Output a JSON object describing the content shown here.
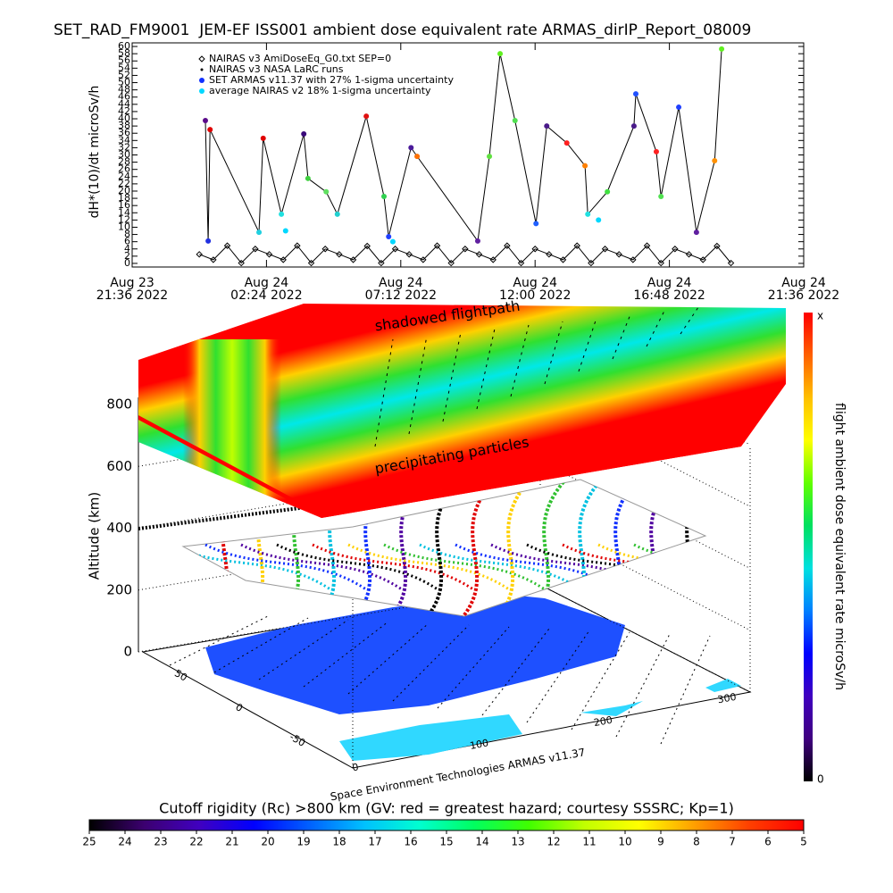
{
  "chart_data": [
    {
      "type": "timeseries",
      "title": "SET_RAD_FM9001  JEM-EF ISS001 ambient dose equivalent rate ARMAS_dirIP_Report_08009",
      "y_label": "dH*(10)/dt microSv/h",
      "xlim": [
        "2022-08-23T21:36",
        "2022-08-24T21:36"
      ],
      "xticks": [
        {
          "value": "2022-08-23T21:36",
          "label": [
            "Aug 23",
            "21:36 2022"
          ]
        },
        {
          "value": "2022-08-24T02:24",
          "label": [
            "Aug 24",
            "02:24 2022"
          ]
        },
        {
          "value": "2022-08-24T07:12",
          "label": [
            "Aug 24",
            "07:12 2022"
          ]
        },
        {
          "value": "2022-08-24T12:00",
          "label": [
            "Aug 24",
            "12:00 2022"
          ]
        },
        {
          "value": "2022-08-24T16:48",
          "label": [
            "Aug 24",
            "16:48 2022"
          ]
        },
        {
          "value": "2022-08-24T21:36",
          "label": [
            "Aug 24",
            "21:36 2022"
          ]
        }
      ],
      "ylim": [
        -1,
        61
      ],
      "yticks": [
        0,
        2,
        4,
        6,
        8,
        10,
        12,
        14,
        16,
        18,
        20,
        22,
        24,
        26,
        28,
        30,
        32,
        34,
        36,
        38,
        40,
        42,
        44,
        46,
        48,
        50,
        52,
        54,
        56,
        58,
        60
      ],
      "series": [
        {
          "name": "NAIRAS v3 AmiDoseEq_G0.txt SEP=0",
          "color": "#000000",
          "marker": "diamond",
          "line": true,
          "x": [
            "2022-08-24T00:00",
            "2022-08-24T00:30",
            "2022-08-24T01:00",
            "2022-08-24T01:30",
            "2022-08-24T02:00",
            "2022-08-24T02:30",
            "2022-08-24T03:00",
            "2022-08-24T03:30",
            "2022-08-24T04:00",
            "2022-08-24T04:30",
            "2022-08-24T05:00",
            "2022-08-24T05:30",
            "2022-08-24T06:00",
            "2022-08-24T06:30",
            "2022-08-24T07:00",
            "2022-08-24T07:30",
            "2022-08-24T08:00",
            "2022-08-24T08:30",
            "2022-08-24T09:00",
            "2022-08-24T09:30",
            "2022-08-24T10:00",
            "2022-08-24T10:30",
            "2022-08-24T11:00",
            "2022-08-24T11:30",
            "2022-08-24T12:00",
            "2022-08-24T12:30",
            "2022-08-24T13:00",
            "2022-08-24T13:30",
            "2022-08-24T14:00",
            "2022-08-24T14:30",
            "2022-08-24T15:00",
            "2022-08-24T15:30",
            "2022-08-24T16:00",
            "2022-08-24T16:30",
            "2022-08-24T17:00",
            "2022-08-24T17:30",
            "2022-08-24T18:00",
            "2022-08-24T18:30",
            "2022-08-24T19:00"
          ],
          "values": [
            2.5,
            1,
            4.9,
            0.1,
            4,
            2.5,
            1,
            4.9,
            0.1,
            4,
            2.5,
            1,
            4.8,
            0.1,
            4,
            2.5,
            1,
            4.9,
            0.1,
            4,
            2.5,
            1,
            4.9,
            0.1,
            4,
            2.5,
            1,
            4.9,
            0.1,
            4,
            2.5,
            1,
            4.9,
            0.1,
            4,
            2.5,
            1,
            4.8,
            0.1
          ]
        },
        {
          "name": "NAIRAS v3 NASA LaRC runs",
          "color": "#000000",
          "marker": "dot",
          "line": false,
          "x": [],
          "values": []
        },
        {
          "name": "SET ARMAS v11.37 with 27% 1-sigma uncertainty",
          "color": "#1030ff",
          "marker": "circle",
          "line": true,
          "line_color": "#000000",
          "x": [
            "2022-08-24T00:13",
            "2022-08-24T00:19",
            "2022-08-24T00:23",
            "2022-08-24T02:08",
            "2022-08-24T02:17",
            "2022-08-24T02:56",
            "2022-08-24T03:44",
            "2022-08-24T03:53",
            "2022-08-24T04:32",
            "2022-08-24T04:56",
            "2022-08-24T05:58",
            "2022-08-24T06:36",
            "2022-08-24T06:46",
            "2022-08-24T07:34",
            "2022-08-24T07:47",
            "2022-08-24T09:57",
            "2022-08-24T10:22",
            "2022-08-24T10:45",
            "2022-08-24T11:17",
            "2022-08-24T12:02",
            "2022-08-24T12:25",
            "2022-08-24T13:08",
            "2022-08-24T13:47",
            "2022-08-24T13:53",
            "2022-08-24T14:35",
            "2022-08-24T15:32",
            "2022-08-24T15:36",
            "2022-08-24T16:20",
            "2022-08-24T16:30",
            "2022-08-24T17:08",
            "2022-08-24T17:46",
            "2022-08-24T18:25",
            "2022-08-24T18:40"
          ],
          "values": [
            39.5,
            6.2,
            37,
            8.6,
            34.6,
            13.6,
            35.8,
            23.5,
            19.8,
            13.6,
            40.7,
            18.5,
            7.4,
            32,
            29.6,
            6.2,
            29.6,
            58,
            39.5,
            11,
            38,
            33.3,
            27,
            13.6,
            19.8,
            38,
            46.9,
            30.9,
            18.5,
            43.2,
            8.6,
            28.4,
            59.3
          ],
          "point_colors": [
            "#5a0a8a",
            "#2030e0",
            "#e00000",
            "#20d0e0",
            "#e00000",
            "#20e0e0",
            "#3a0a7a",
            "#40d040",
            "#60e060",
            "#20d0d0",
            "#e01010",
            "#30d050",
            "#2040ff",
            "#4a1a9a",
            "#ff7000",
            "#6020a0",
            "#60e040",
            "#60f020",
            "#50e050",
            "#2060ff",
            "#4a1a8a",
            "#ff2020",
            "#ff8000",
            "#20e0e0",
            "#40e040",
            "#4a1a8a",
            "#2050ff",
            "#ff2020",
            "#50e050",
            "#2040ff",
            "#6020a0",
            "#ff9000",
            "#60f020"
          ]
        },
        {
          "name": "average NAIRAS v2 18% 1-sigma uncertainty",
          "color": "#00d8ff",
          "marker": "circle",
          "line": false,
          "x": [
            "2022-08-24T03:05",
            "2022-08-24T06:55",
            "2022-08-24T14:16"
          ],
          "values": [
            9,
            6,
            12
          ]
        }
      ]
    },
    {
      "type": "surface3d",
      "z_label": "Altitude (km)",
      "zlim": [
        0,
        800
      ],
      "zticks": [
        0,
        200,
        400,
        600,
        800
      ],
      "latlim": [
        90,
        -90
      ],
      "latticks": [
        50,
        0,
        -50
      ],
      "lonlim": [
        0,
        310
      ],
      "lonticks": [
        0,
        100,
        200,
        300
      ],
      "annotations": [
        "shadowed flightpath",
        "precipitating particles"
      ],
      "footer": "Space Environment Technologies ARMAS v11.37",
      "colorbar_label": "flight ambient dose equivalent rate microSv/h",
      "colorbar_ends": [
        "x",
        "0"
      ],
      "colorbar_colors": [
        "#ff0000",
        "#ff6000",
        "#ffc000",
        "#ffff00",
        "#60ff00",
        "#00e060",
        "#00e0e0",
        "#0080ff",
        "#0000ff",
        "#4000c0",
        "#400080",
        "#000000"
      ]
    },
    {
      "type": "colorbar",
      "title": "Cutoff rigidity (Rc) >800 km (GV: red = greatest hazard; courtesy SSSRC; Kp=1)",
      "xlim": [
        25,
        5
      ],
      "xticks": [
        25,
        24,
        23,
        22,
        21,
        20,
        19,
        18,
        17,
        16,
        15,
        14,
        13,
        12,
        11,
        10,
        9,
        8,
        7,
        6,
        5
      ],
      "colors": [
        "#000000",
        "#3c0070",
        "#4000c0",
        "#0000ff",
        "#0060ff",
        "#00c0ff",
        "#00ffd0",
        "#00ff60",
        "#40ff00",
        "#c0ff00",
        "#ffff00",
        "#ffa000",
        "#ff4000",
        "#ff0000"
      ]
    }
  ]
}
